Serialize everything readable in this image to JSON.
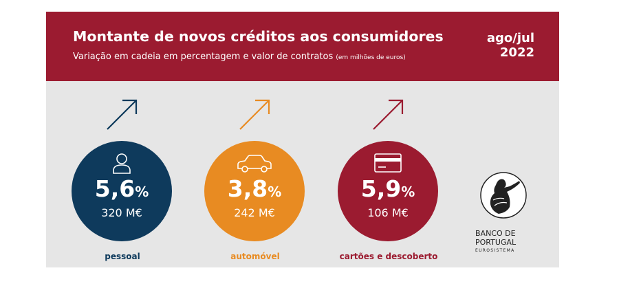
{
  "header": {
    "title": "Montante de novos créditos aos consumidores",
    "subtitle": "Variação em cadeia em percentagem e valor de contratos",
    "subtitle_unit": "(em milhões de euros)",
    "period_line1": "ago/jul",
    "period_line2": "2022"
  },
  "items": [
    {
      "name": "pessoal",
      "value": "5,6",
      "unit": "%",
      "amount": "320 M€",
      "trend": "up",
      "icon": "person-icon",
      "color": "#0e3a5c"
    },
    {
      "name": "automóvel",
      "value": "3,8",
      "unit": "%",
      "amount": "242 M€",
      "trend": "up",
      "icon": "car-icon",
      "color": "#e88b22"
    },
    {
      "name": "cartões e descoberto",
      "value": "5,9",
      "unit": "%",
      "amount": "106 M€",
      "trend": "up",
      "icon": "credit-card-icon",
      "color": "#9b1b30"
    }
  ],
  "logo": {
    "line1": "BANCO DE",
    "line2": "PORTUGAL",
    "line3": "EUROSISTEMA"
  },
  "colors": {
    "header_bg": "#9b1b30",
    "panel_bg": "#e6e6e6"
  }
}
